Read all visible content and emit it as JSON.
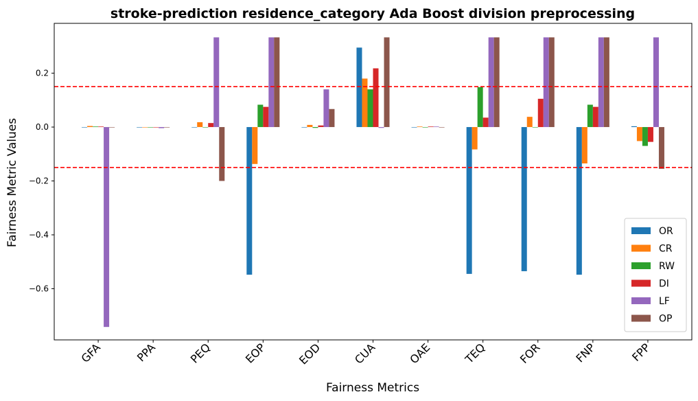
{
  "chart_data": {
    "type": "bar",
    "title": "stroke-prediction residence_category Ada Boost division preprocessing",
    "xlabel": "Fairness Metrics",
    "ylabel": "Fairness Metric Values",
    "ylim": [
      -0.79,
      0.385
    ],
    "yticks": [
      -0.6,
      -0.4,
      -0.2,
      0.0,
      0.2
    ],
    "ytick_labels": [
      "−0.6",
      "−0.4",
      "−0.2",
      "0.0",
      "0.2"
    ],
    "categories": [
      "GFA",
      "PPA",
      "PEQ",
      "EOP",
      "EOD",
      "CUA",
      "OAE",
      "TEQ",
      "FOR",
      "FNP",
      "FPP"
    ],
    "series": [
      {
        "name": "OR",
        "color": "#1f77b4",
        "values": [
          0.0,
          0.0,
          0.0,
          -0.548,
          0.0,
          0.295,
          0.0,
          -0.545,
          -0.535,
          -0.548,
          0.003
        ]
      },
      {
        "name": "CR",
        "color": "#ff7f0e",
        "values": [
          0.004,
          0.0,
          0.018,
          -0.137,
          0.008,
          0.18,
          0.002,
          -0.083,
          0.038,
          -0.135,
          -0.052
        ]
      },
      {
        "name": "RW",
        "color": "#2ca02c",
        "values": [
          0.002,
          0.0,
          0.0,
          0.083,
          -0.003,
          0.14,
          0.0,
          0.148,
          0.0,
          0.083,
          -0.07
        ]
      },
      {
        "name": "DI",
        "color": "#d62728",
        "values": [
          0.002,
          0.0,
          0.015,
          0.075,
          0.006,
          0.218,
          0.002,
          0.035,
          0.105,
          0.075,
          -0.055
        ]
      },
      {
        "name": "LF",
        "color": "#9467bd",
        "values": [
          -0.742,
          -0.004,
          0.333,
          0.333,
          0.14,
          -0.003,
          0.002,
          0.333,
          0.333,
          0.333,
          0.333
        ]
      },
      {
        "name": "OP",
        "color": "#8c564b",
        "values": [
          0.0,
          0.0,
          -0.2,
          0.333,
          0.067,
          0.333,
          0.0,
          0.333,
          0.333,
          0.333,
          -0.155
        ]
      }
    ],
    "threshold_lines": [
      0.15,
      -0.15
    ],
    "threshold_color": "#ff0000",
    "grid": false,
    "legend_position": "lower-right"
  }
}
